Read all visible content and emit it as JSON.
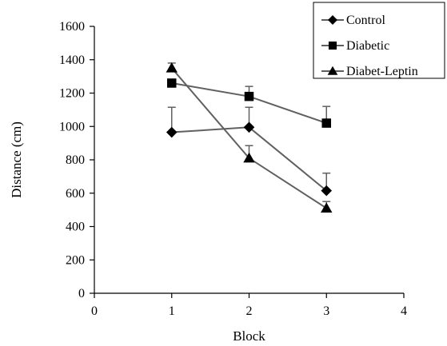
{
  "chart_data": {
    "type": "line",
    "title": "",
    "xlabel": "Block",
    "ylabel": "Distance (cm)",
    "xlim": [
      0,
      4
    ],
    "ylim": [
      0,
      1600
    ],
    "xticks": [
      "0",
      "1",
      "2",
      "3",
      "4"
    ],
    "yticks": [
      "0",
      "200",
      "400",
      "600",
      "800",
      "1000",
      "1200",
      "1400",
      "1600"
    ],
    "grid": false,
    "legend_position": "top-right",
    "x": [
      1,
      2,
      3
    ],
    "series": [
      {
        "name": "Control",
        "marker": "diamond",
        "values": [
          965,
          995,
          615
        ],
        "error": [
          150,
          120,
          105
        ]
      },
      {
        "name": "Diabetic",
        "marker": "square",
        "values": [
          1260,
          1180,
          1020
        ],
        "error": [
          0,
          60,
          100
        ]
      },
      {
        "name": "Diabet-Leptin",
        "marker": "triangle",
        "values": [
          1350,
          810,
          510
        ],
        "error": [
          30,
          75,
          40
        ]
      }
    ],
    "colors": {
      "line": "#606060",
      "marker": "#000000",
      "axis": "#000000"
    }
  }
}
